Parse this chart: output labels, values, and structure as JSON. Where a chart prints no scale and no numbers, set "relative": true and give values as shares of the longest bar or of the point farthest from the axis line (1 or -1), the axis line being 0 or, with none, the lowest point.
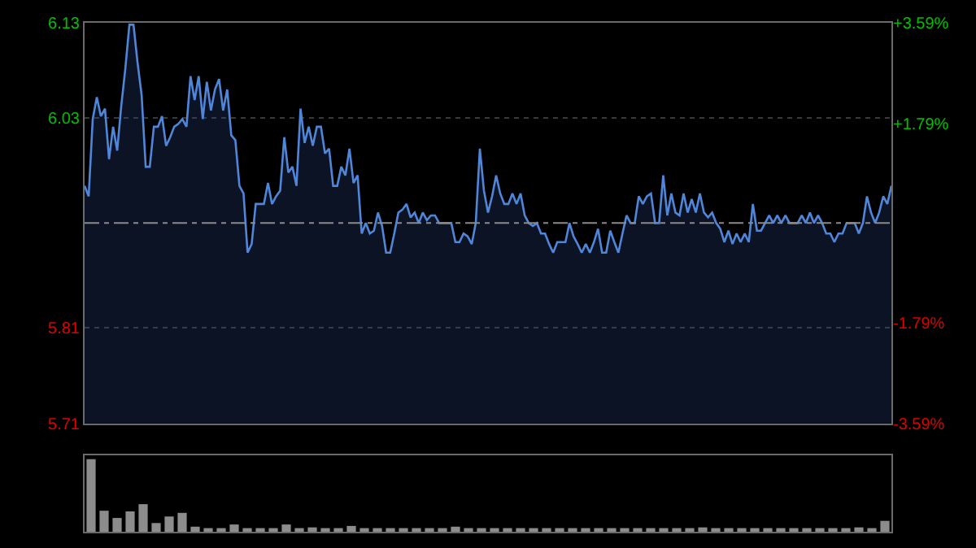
{
  "chart_data": [
    {
      "type": "area",
      "tick_labels": "y",
      "grid": "y",
      "marker": "none",
      "line_style": "solid",
      "categories": [
        null,
        null,
        null,
        null,
        null,
        null,
        null,
        null,
        null,
        null,
        null,
        null,
        null,
        null,
        null,
        null,
        null,
        null,
        null,
        null,
        null,
        null,
        null,
        null,
        null,
        null,
        null,
        null,
        null,
        null,
        null,
        null,
        null,
        null,
        null,
        null,
        null,
        null,
        null,
        null,
        null,
        null,
        null,
        null,
        null,
        null,
        null,
        null,
        null,
        null,
        null,
        null,
        null,
        null,
        null,
        null,
        null,
        null,
        null,
        null,
        null,
        null,
        null,
        null,
        null,
        null,
        null,
        null,
        null,
        null,
        null,
        null,
        null,
        null,
        null,
        null,
        null,
        null,
        null,
        null,
        null,
        null,
        null,
        null,
        null,
        null,
        null,
        null,
        null,
        null,
        null,
        null,
        null,
        null,
        null,
        null,
        null,
        null,
        null,
        null,
        null,
        null,
        null,
        null,
        null,
        null,
        null,
        null,
        null,
        null,
        null,
        null,
        null,
        null,
        null,
        null,
        null,
        null,
        null,
        null,
        null,
        null,
        null,
        null,
        null,
        null,
        null,
        null,
        null,
        null,
        null,
        null,
        null,
        null,
        null,
        null,
        null,
        null,
        null,
        null,
        null,
        null,
        null,
        null,
        null,
        null,
        null,
        null,
        null,
        null,
        null,
        null,
        null,
        null,
        null,
        null,
        null,
        null,
        null,
        null,
        null,
        null,
        null,
        null,
        null,
        null,
        null,
        null,
        null,
        null,
        null,
        null,
        null,
        null,
        null,
        null,
        null,
        null,
        null,
        null,
        null,
        null,
        null,
        null,
        null,
        null,
        null,
        null,
        null,
        null,
        null,
        null,
        null,
        null,
        null,
        null,
        null,
        null,
        null
      ],
      "ylim": [
        5.71,
        6.13
      ],
      "yticks": [
        5.71,
        5.81,
        6.03,
        6.13
      ],
      "y2lim": [
        -3.59,
        3.59
      ],
      "y2ticks": [
        {
          "value": -3.59,
          "label": "-3.59%"
        },
        {
          "value": -1.79,
          "label": "-1.79%"
        },
        {
          "value": 1.79,
          "label": "+1.79%"
        },
        {
          "value": 3.59,
          "label": "+3.59%"
        }
      ],
      "ref_lines": [
        {
          "axis": "y",
          "value": 5.92,
          "color": "#8a8a8a",
          "line_style": "dashed"
        }
      ],
      "series": [
        {
          "color": "#4f86d9",
          "values": [
            5.959,
            5.948,
            6.029,
            6.052,
            6.032,
            6.04,
            5.987,
            6.021,
            5.996,
            6.043,
            6.082,
            6.128,
            6.128,
            6.088,
            6.054,
            5.979,
            5.979,
            6.021,
            6.021,
            6.032,
            6.001,
            6.01,
            6.021,
            6.024,
            6.029,
            6.021,
            6.074,
            6.049,
            6.074,
            6.029,
            6.068,
            6.038,
            6.06,
            6.071,
            6.038,
            6.06,
            6.012,
            6.007,
            5.959,
            5.951,
            5.889,
            5.898,
            5.94,
            5.94,
            5.94,
            5.962,
            5.94,
            5.948,
            5.954,
            6.01,
            5.973,
            5.979,
            5.959,
            6.04,
            6.004,
            6.021,
            6.001,
            6.021,
            6.021,
            5.993,
            5.998,
            5.959,
            5.959,
            5.979,
            5.97,
            5.998,
            5.962,
            5.97,
            5.909,
            5.92,
            5.909,
            5.912,
            5.931,
            5.917,
            5.889,
            5.889,
            5.909,
            5.931,
            5.934,
            5.94,
            5.926,
            5.931,
            5.92,
            5.931,
            5.923,
            5.928,
            5.928,
            5.92,
            5.92,
            5.92,
            5.92,
            5.9,
            5.9,
            5.909,
            5.906,
            5.898,
            5.92,
            5.998,
            5.954,
            5.931,
            5.948,
            5.97,
            5.951,
            5.94,
            5.94,
            5.951,
            5.94,
            5.951,
            5.928,
            5.92,
            5.917,
            5.92,
            5.909,
            5.909,
            5.898,
            5.889,
            5.9,
            5.9,
            5.9,
            5.92,
            5.906,
            5.898,
            5.889,
            5.898,
            5.889,
            5.9,
            5.914,
            5.889,
            5.889,
            5.912,
            5.9,
            5.889,
            5.909,
            5.928,
            5.92,
            5.92,
            5.948,
            5.94,
            5.948,
            5.951,
            5.92,
            5.92,
            5.97,
            5.928,
            5.951,
            5.931,
            5.928,
            5.951,
            5.931,
            5.945,
            5.931,
            5.951,
            5.931,
            5.926,
            5.931,
            5.92,
            5.914,
            5.9,
            5.912,
            5.898,
            5.909,
            5.9,
            5.909,
            5.9,
            5.94,
            5.912,
            5.912,
            5.92,
            5.928,
            5.92,
            5.928,
            5.92,
            5.928,
            5.92,
            5.92,
            5.92,
            5.928,
            5.92,
            5.931,
            5.92,
            5.928,
            5.92,
            5.909,
            5.909,
            5.9,
            5.909,
            5.909,
            5.92,
            5.92,
            5.92,
            5.909,
            5.92,
            5.948,
            5.931,
            5.92,
            5.931,
            5.948,
            5.94,
            5.959
          ]
        }
      ]
    },
    {
      "type": "bar",
      "relative": true,
      "tick_labels": false,
      "categories": [
        null,
        null,
        null,
        null,
        null,
        null,
        null,
        null,
        null,
        null,
        null,
        null,
        null,
        null,
        null,
        null,
        null,
        null,
        null,
        null,
        null,
        null,
        null,
        null,
        null,
        null,
        null,
        null,
        null,
        null,
        null,
        null,
        null,
        null,
        null,
        null,
        null,
        null,
        null,
        null,
        null,
        null,
        null,
        null,
        null,
        null,
        null,
        null,
        null,
        null,
        null,
        null,
        null,
        null,
        null,
        null,
        null,
        null,
        null,
        null,
        null,
        null
      ],
      "series": [
        {
          "color": "#8c8c8c",
          "values": [
            1.0,
            0.29,
            0.19,
            0.28,
            0.38,
            0.12,
            0.21,
            0.26,
            0.07,
            0.05,
            0.05,
            0.1,
            0.05,
            0.05,
            0.05,
            0.1,
            0.05,
            0.06,
            0.05,
            0.05,
            0.08,
            0.05,
            0.05,
            0.05,
            0.05,
            0.05,
            0.05,
            0.05,
            0.07,
            0.05,
            0.05,
            0.05,
            0.05,
            0.05,
            0.05,
            0.05,
            0.05,
            0.05,
            0.05,
            0.05,
            0.05,
            0.05,
            0.05,
            0.05,
            0.05,
            0.05,
            0.05,
            0.06,
            0.05,
            0.05,
            0.05,
            0.05,
            0.05,
            0.05,
            0.05,
            0.05,
            0.05,
            0.05,
            0.05,
            0.06,
            0.05,
            0.15
          ]
        }
      ]
    }
  ]
}
